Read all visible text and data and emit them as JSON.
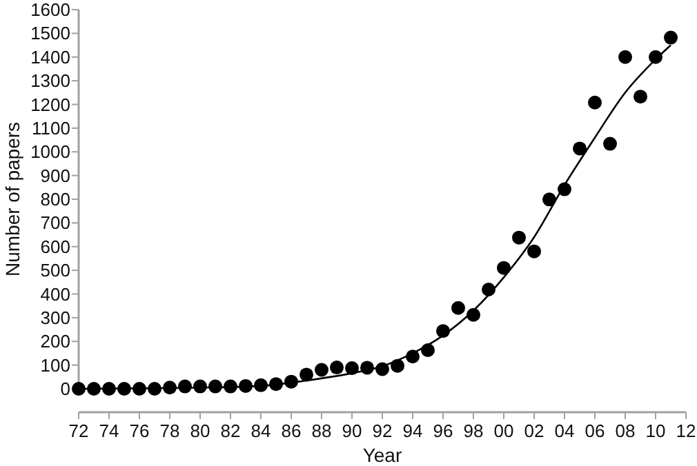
{
  "chart_data": {
    "type": "scatter",
    "xlabel": "Year",
    "ylabel": "Number of papers",
    "xlim": [
      1972,
      2012
    ],
    "ylim": [
      0,
      1600
    ],
    "xticks": [
      {
        "value": 1972,
        "label": "72"
      },
      {
        "value": 1974,
        "label": "74"
      },
      {
        "value": 1976,
        "label": "76"
      },
      {
        "value": 1978,
        "label": "78"
      },
      {
        "value": 1980,
        "label": "80"
      },
      {
        "value": 1982,
        "label": "82"
      },
      {
        "value": 1984,
        "label": "84"
      },
      {
        "value": 1986,
        "label": "86"
      },
      {
        "value": 1988,
        "label": "88"
      },
      {
        "value": 1990,
        "label": "90"
      },
      {
        "value": 1992,
        "label": "92"
      },
      {
        "value": 1994,
        "label": "94"
      },
      {
        "value": 1996,
        "label": "96"
      },
      {
        "value": 1998,
        "label": "98"
      },
      {
        "value": 2000,
        "label": "00"
      },
      {
        "value": 2002,
        "label": "02"
      },
      {
        "value": 2004,
        "label": "04"
      },
      {
        "value": 2006,
        "label": "06"
      },
      {
        "value": 2008,
        "label": "08"
      },
      {
        "value": 2010,
        "label": "10"
      },
      {
        "value": 2012,
        "label": "12"
      }
    ],
    "yticks": [
      0,
      100,
      200,
      300,
      400,
      500,
      600,
      700,
      800,
      900,
      1000,
      1100,
      1200,
      1300,
      1400,
      1500,
      1600
    ],
    "grid": false,
    "marker": "circle",
    "series": [
      {
        "color": "#000000",
        "x": [
          1972,
          1973,
          1974,
          1975,
          1976,
          1977,
          1978,
          1979,
          1980,
          1981,
          1982,
          1983,
          1984,
          1985,
          1986,
          1987,
          1988,
          1989,
          1990,
          1991,
          1992,
          1993,
          1994,
          1995,
          1996,
          1997,
          1998,
          1999,
          2000,
          2001,
          2002,
          2003,
          2004,
          2005,
          2006,
          2007,
          2008,
          2009,
          2010,
          2011
        ],
        "values": [
          0,
          0,
          0,
          0,
          0,
          0,
          5,
          10,
          10,
          10,
          10,
          12,
          15,
          20,
          30,
          60,
          80,
          90,
          87,
          89,
          83,
          97,
          136,
          163,
          244,
          341,
          312,
          419,
          510,
          638,
          580,
          799,
          842,
          1014,
          1208,
          1034,
          1400,
          1233,
          1400,
          1482
        ]
      },
      {
        "type": "line",
        "color": "#000000",
        "marker": "none",
        "line_style": "solid",
        "x": [
          1972,
          1976,
          1980,
          1984,
          1987,
          1990,
          1992,
          1994,
          1996,
          1998,
          2000,
          2002,
          2004,
          2006,
          2008,
          2010,
          2011
        ],
        "values": [
          0,
          2,
          5,
          12,
          35,
          66,
          95,
          150,
          225,
          330,
          470,
          640,
          860,
          1060,
          1250,
          1390,
          1450
        ]
      }
    ]
  }
}
